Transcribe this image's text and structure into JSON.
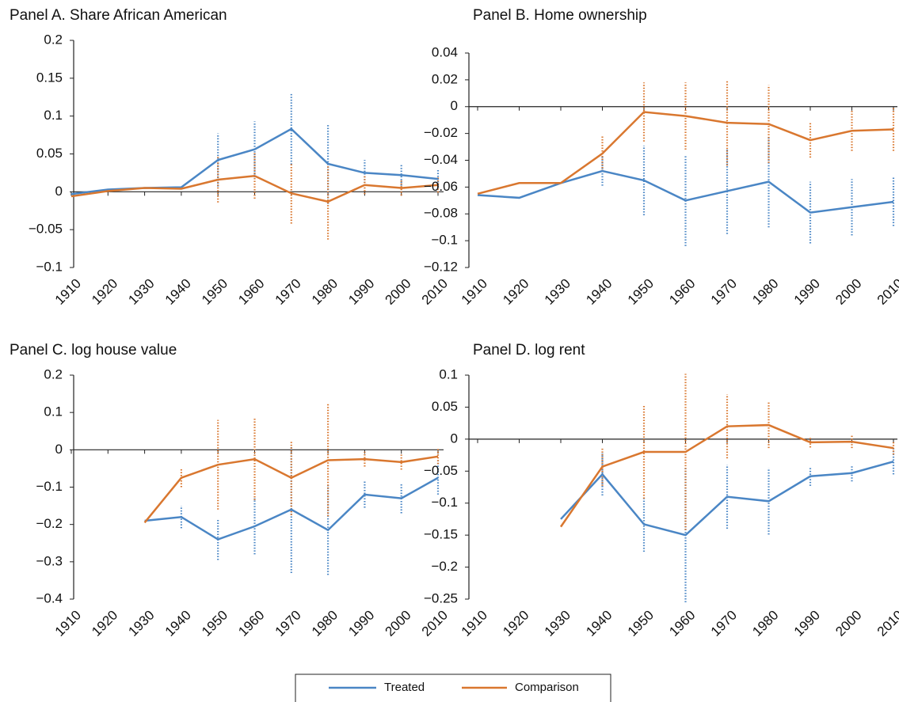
{
  "chart_data": [
    {
      "type": "line",
      "title": "Panel A. Share African American",
      "categories": [
        "1910",
        "1920",
        "1930",
        "1940",
        "1950",
        "1960",
        "1970",
        "1980",
        "1990",
        "2000",
        "2010"
      ],
      "series": [
        {
          "name": "Treated",
          "color": "#4a86c5",
          "values": [
            -0.003,
            0.003,
            0.005,
            0.006,
            0.042,
            0.056,
            0.083,
            0.037,
            0.025,
            0.022,
            0.017
          ],
          "errors": [
            null,
            null,
            null,
            null,
            0.035,
            0.037,
            0.047,
            0.053,
            0.017,
            0.014,
            0.012
          ]
        },
        {
          "name": "Comparison",
          "color": "#d9772f",
          "values": [
            -0.006,
            0.001,
            0.005,
            0.004,
            0.016,
            0.021,
            -0.002,
            -0.013,
            0.009,
            0.005,
            0.009
          ],
          "errors": [
            null,
            null,
            null,
            null,
            0.03,
            0.03,
            0.04,
            0.05,
            0.012,
            0.01,
            0.01
          ]
        }
      ],
      "ylim": [
        -0.1,
        0.2
      ],
      "yticks": [
        0.2,
        0.15,
        0.1,
        0.05,
        0,
        {
          "value": -0.05,
          "label": "−0.05"
        },
        {
          "value": -0.1,
          "label": "−0.1"
        }
      ]
    },
    {
      "type": "line",
      "title": "Panel B. Home ownership",
      "categories": [
        "1910",
        "1920",
        "1930",
        "1940",
        "1950",
        "1960",
        "1970",
        "1980",
        "1990",
        "2000",
        "2010"
      ],
      "series": [
        {
          "name": "Treated",
          "color": "#4a86c5",
          "values": [
            -0.066,
            -0.068,
            -0.057,
            -0.048,
            -0.055,
            -0.07,
            -0.063,
            -0.056,
            -0.079,
            -0.075,
            -0.071
          ],
          "errors": [
            null,
            null,
            null,
            0.011,
            0.026,
            0.034,
            0.032,
            0.034,
            0.023,
            0.021,
            0.018
          ]
        },
        {
          "name": "Comparison",
          "color": "#d9772f",
          "values": [
            -0.065,
            -0.057,
            -0.057,
            -0.035,
            -0.004,
            -0.007,
            -0.012,
            -0.013,
            -0.025,
            -0.018,
            -0.017
          ],
          "errors": [
            null,
            null,
            null,
            0.013,
            0.022,
            0.025,
            0.032,
            0.029,
            0.013,
            0.015,
            0.016
          ]
        }
      ],
      "ylim": [
        -0.12,
        0.04
      ],
      "yticks": [
        0.04,
        0.02,
        0,
        {
          "value": -0.02,
          "label": "−0.02"
        },
        {
          "value": -0.04,
          "label": "−0.04"
        },
        {
          "value": -0.06,
          "label": "−0.06"
        },
        {
          "value": -0.08,
          "label": "−0.08"
        },
        {
          "value": -0.1,
          "label": "−0.1"
        },
        {
          "value": -0.12,
          "label": "−0.12"
        }
      ]
    },
    {
      "type": "line",
      "title": "Panel C. log house value",
      "categories": [
        "1910",
        "1920",
        "1930",
        "1940",
        "1950",
        "1960",
        "1970",
        "1980",
        "1990",
        "2000",
        "2010"
      ],
      "series": [
        {
          "name": "Treated",
          "color": "#4a86c5",
          "values": [
            null,
            null,
            -0.19,
            -0.18,
            -0.24,
            -0.205,
            -0.16,
            -0.215,
            -0.12,
            -0.13,
            -0.075
          ],
          "errors": [
            null,
            null,
            null,
            0.03,
            0.055,
            0.075,
            0.17,
            0.12,
            0.035,
            0.04,
            0.045
          ]
        },
        {
          "name": "Comparison",
          "color": "#d9772f",
          "values": [
            null,
            null,
            -0.195,
            -0.075,
            -0.04,
            -0.025,
            -0.075,
            -0.028,
            -0.025,
            -0.033,
            -0.018
          ],
          "errors": [
            null,
            null,
            null,
            0.025,
            0.12,
            0.11,
            0.1,
            0.15,
            0.02,
            0.02,
            0.02
          ]
        }
      ],
      "ylim": [
        -0.4,
        0.2
      ],
      "yticks": [
        0.2,
        0.1,
        0,
        {
          "value": -0.1,
          "label": "−0.1"
        },
        {
          "value": -0.2,
          "label": "−0.2"
        },
        {
          "value": -0.3,
          "label": "−0.3"
        },
        {
          "value": -0.4,
          "label": "−0.4"
        }
      ]
    },
    {
      "type": "line",
      "title": "Panel D. log rent",
      "categories": [
        "1910",
        "1920",
        "1930",
        "1940",
        "1950",
        "1960",
        "1970",
        "1980",
        "1990",
        "2000",
        "2010"
      ],
      "series": [
        {
          "name": "Treated",
          "color": "#4a86c5",
          "values": [
            null,
            null,
            -0.125,
            -0.055,
            -0.133,
            -0.15,
            -0.09,
            -0.097,
            -0.058,
            -0.053,
            -0.035
          ],
          "errors": [
            null,
            null,
            null,
            0.033,
            0.043,
            0.105,
            0.05,
            0.052,
            0.015,
            0.013,
            0.02
          ]
        },
        {
          "name": "Comparison",
          "color": "#d9772f",
          "values": [
            null,
            null,
            -0.137,
            -0.043,
            -0.02,
            -0.02,
            0.02,
            0.022,
            -0.005,
            -0.004,
            -0.014
          ],
          "errors": [
            null,
            null,
            null,
            0.03,
            0.073,
            0.122,
            0.05,
            0.036,
            0.008,
            0.01,
            0.01
          ]
        }
      ],
      "ylim": [
        -0.25,
        0.1
      ],
      "yticks": [
        0.1,
        0.05,
        0,
        {
          "value": -0.05,
          "label": "−0.05"
        },
        {
          "value": -0.1,
          "label": "−0.1"
        },
        {
          "value": -0.15,
          "label": "−0.15"
        },
        {
          "value": -0.2,
          "label": "−0.2"
        },
        {
          "value": -0.25,
          "label": "−0.25"
        }
      ]
    }
  ]
}
